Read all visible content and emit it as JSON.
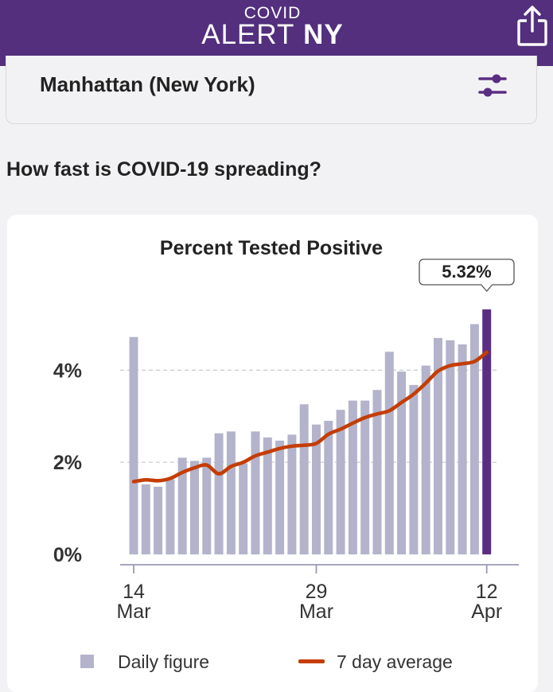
{
  "header": {
    "title_small": "COVID",
    "title_main_light": "ALERT",
    "title_main_bold": "NY",
    "share_icon": "share-icon"
  },
  "location": {
    "name": "Manhattan (New York)",
    "filter_icon": "sliders-icon"
  },
  "question": "How fast is COVID-19 spreading?",
  "colors": {
    "header": "#532f7e",
    "bar": "#b3b3cc",
    "bar_highlight": "#5b2d82",
    "line": "#c43d00"
  },
  "chart_data": {
    "type": "bar",
    "title": "Percent Tested Positive",
    "callout": "5.32%",
    "x": [
      "2020-03-14",
      "2020-03-15",
      "2020-03-16",
      "2020-03-17",
      "2020-03-18",
      "2020-03-19",
      "2020-03-20",
      "2020-03-21",
      "2020-03-22",
      "2020-03-23",
      "2020-03-24",
      "2020-03-25",
      "2020-03-26",
      "2020-03-27",
      "2020-03-28",
      "2020-03-29",
      "2020-03-30",
      "2020-03-31",
      "2020-04-01",
      "2020-04-02",
      "2020-04-03",
      "2020-04-04",
      "2020-04-05",
      "2020-04-06",
      "2020-04-07",
      "2020-04-08",
      "2020-04-09",
      "2020-04-10",
      "2020-04-11",
      "2020-04-12"
    ],
    "series": [
      {
        "name": "Daily figure",
        "type": "bar",
        "values": [
          4.72,
          1.52,
          1.47,
          1.63,
          2.1,
          2.03,
          2.1,
          2.63,
          2.67,
          1.98,
          2.67,
          2.54,
          2.47,
          2.6,
          3.26,
          2.82,
          2.9,
          3.14,
          3.34,
          3.34,
          3.57,
          4.4,
          3.97,
          3.68,
          4.1,
          4.7,
          4.65,
          4.56,
          5.0,
          5.32
        ]
      },
      {
        "name": "7 day average",
        "type": "line",
        "values": [
          1.58,
          1.62,
          1.6,
          1.65,
          1.78,
          1.88,
          1.94,
          1.75,
          1.91,
          2.0,
          2.14,
          2.22,
          2.3,
          2.35,
          2.37,
          2.41,
          2.61,
          2.72,
          2.85,
          2.97,
          3.05,
          3.12,
          3.3,
          3.48,
          3.72,
          3.98,
          4.1,
          4.14,
          4.19,
          4.39
        ]
      }
    ],
    "y_ticks": [
      "0%",
      "2%",
      "4%"
    ],
    "y_tick_values": [
      0,
      2,
      4
    ],
    "x_ticks": [
      {
        "x": "2020-03-14",
        "day": "14",
        "month": "Mar"
      },
      {
        "x": "2020-03-29",
        "day": "29",
        "month": "Mar"
      },
      {
        "x": "2020-04-12",
        "day": "12",
        "month": "Apr"
      }
    ],
    "ylim": [
      0,
      5.4
    ],
    "grid": true,
    "legend_position": "bottom"
  }
}
